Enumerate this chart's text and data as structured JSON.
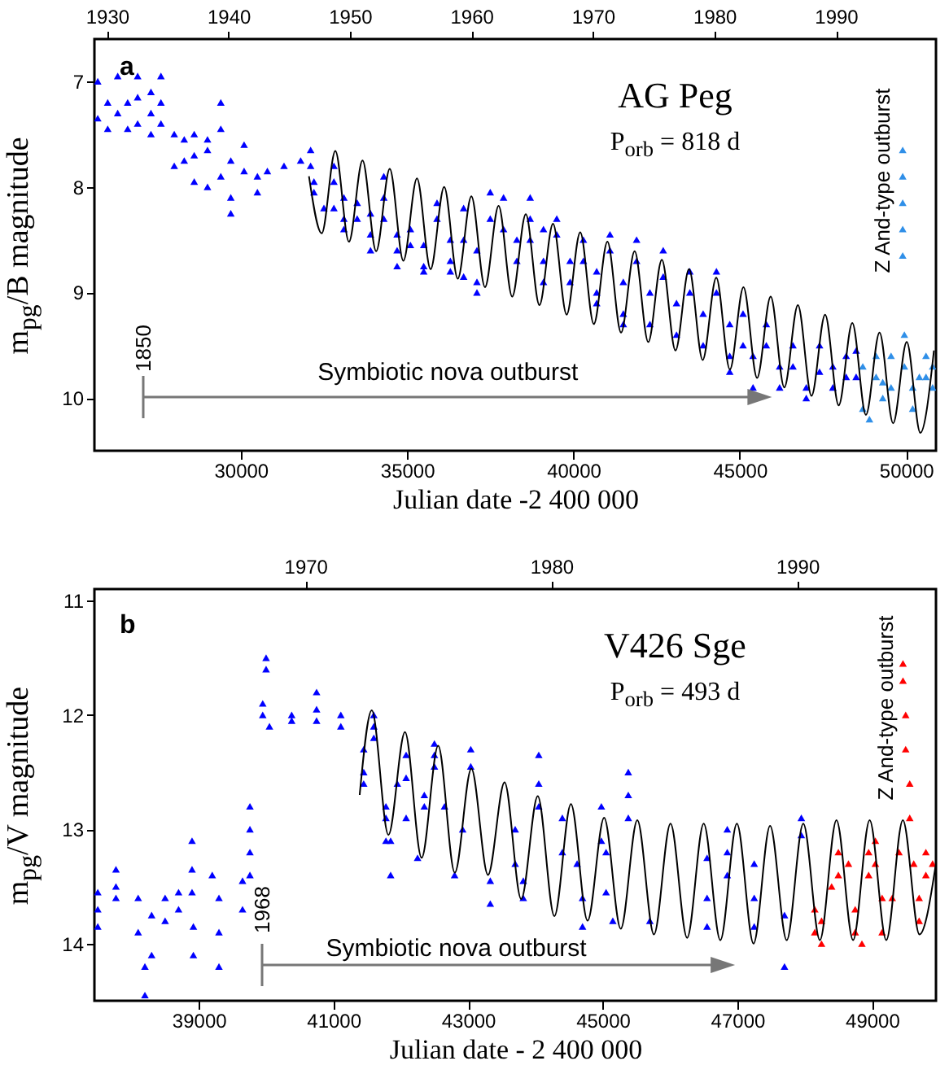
{
  "chart_data": [
    {
      "type": "scatter",
      "title": "AG Peg",
      "subtitle": "P$_{orb}$ = 818 d",
      "xlabel": "Julian date -2 400 000",
      "ylabel": "m$_{pg}$/B magnitude",
      "marker": "triangle",
      "annotations": [
        "a",
        "Z And-type outburst",
        "1850",
        "Symbiotic nova outburst"
      ],
      "xlim": [
        25600,
        50900
      ],
      "xticks": [
        30000,
        35000,
        40000,
        45000,
        50000
      ],
      "ylim": [
        10.5,
        6.6
      ],
      "yticks": [
        7,
        8,
        9,
        10
      ],
      "x2lim": [
        1928.97,
        1998.24
      ],
      "x2ticks": [
        1930,
        1940,
        1950,
        1960,
        1970,
        1980,
        1990
      ],
      "series": [
        {
          "color": "#0000ff",
          "x": [
            25700,
            25700,
            26000,
            26000,
            26300,
            26300,
            26600,
            26600,
            26900,
            26900,
            26900,
            27300,
            27300,
            27300,
            27600,
            27600,
            27600,
            28000,
            28000,
            28300,
            28300,
            28600,
            28600,
            28600,
            29000,
            29000,
            29000,
            29400,
            29400,
            29400,
            29700,
            29700,
            29700,
            30100,
            30100,
            30500,
            30500,
            30800,
            31300,
            31800,
            32200,
            32200,
            32500,
            32100,
            32100,
            32800,
            32800,
            32800,
            33100,
            33100,
            33100,
            33500,
            33500,
            33900,
            33900,
            33900,
            34300,
            34300,
            34300,
            34700,
            34700,
            34700,
            35100,
            35100,
            35500,
            35500,
            35500,
            35900,
            35900,
            36300,
            36300,
            36300,
            36700,
            36700,
            36700,
            37100,
            37100,
            37100,
            37500,
            37500,
            37900,
            37900,
            38300,
            38300,
            38700,
            38700,
            38700,
            39100,
            39100,
            39100,
            39500,
            39500,
            39900,
            39900,
            40300,
            40300,
            40700,
            40700,
            40700,
            41100,
            41100,
            41500,
            41500,
            41500,
            41900,
            41900,
            42300,
            42300,
            42700,
            42700,
            43100,
            43100,
            43500,
            43500,
            43900,
            43900,
            44300,
            44300,
            44700,
            44700,
            44700,
            45100,
            45100,
            45400,
            45400,
            45800,
            45800,
            46200,
            46200,
            46600,
            46600,
            47000,
            47000,
            47400,
            47400,
            47800,
            47800,
            48200,
            48200,
            48500,
            48500
          ],
          "values": [
            7.0,
            7.35,
            7.2,
            7.45,
            6.95,
            7.3,
            7.2,
            7.45,
            6.95,
            7.15,
            7.4,
            7.1,
            7.3,
            7.5,
            6.95,
            7.2,
            7.4,
            7.5,
            7.8,
            7.55,
            7.75,
            7.5,
            7.7,
            7.95,
            7.55,
            7.65,
            8.0,
            7.2,
            7.45,
            7.9,
            7.75,
            8.1,
            8.25,
            7.6,
            7.85,
            7.9,
            8.05,
            7.85,
            7.8,
            7.75,
            7.95,
            8.05,
            8.2,
            7.65,
            7.8,
            7.8,
            7.95,
            8.2,
            8.1,
            8.3,
            8.4,
            8.15,
            8.3,
            8.25,
            8.45,
            8.6,
            7.9,
            8.1,
            8.3,
            8.45,
            8.6,
            8.75,
            8.4,
            8.55,
            8.55,
            8.75,
            8.8,
            8.15,
            8.3,
            8.5,
            8.7,
            8.8,
            8.2,
            8.5,
            8.85,
            8.6,
            8.9,
            9.0,
            8.05,
            8.3,
            8.1,
            8.4,
            8.5,
            8.7,
            8.1,
            8.3,
            8.5,
            8.4,
            8.7,
            8.9,
            8.3,
            8.45,
            8.7,
            8.9,
            8.5,
            8.7,
            8.8,
            9.0,
            9.1,
            8.45,
            8.6,
            8.9,
            9.2,
            9.3,
            8.5,
            8.7,
            9.0,
            9.3,
            8.6,
            8.85,
            9.1,
            9.4,
            8.8,
            9.0,
            9.2,
            9.5,
            8.8,
            9.0,
            9.3,
            9.6,
            9.75,
            9.2,
            9.5,
            9.6,
            9.9,
            9.3,
            9.5,
            9.7,
            9.9,
            9.5,
            9.7,
            9.9,
            10.0,
            9.5,
            9.75,
            9.7,
            9.9,
            9.6,
            9.8,
            9.55,
            9.8
          ]
        },
        {
          "color": "#2f8fe8",
          "x": [
            48700,
            48700,
            48900,
            49100,
            49100,
            49300,
            49300,
            49550,
            49550,
            49900,
            49900,
            49900,
            49900,
            49900,
            49950,
            49950,
            50200,
            50200,
            50400,
            50600,
            50600,
            50800,
            50800
          ],
          "values": [
            9.7,
            10.1,
            10.2,
            9.6,
            9.8,
            9.85,
            10.0,
            9.6,
            9.9,
            7.65,
            7.9,
            8.15,
            8.4,
            8.65,
            9.4,
            9.7,
            9.9,
            10.1,
            9.8,
            9.6,
            9.8,
            9.7,
            9.9
          ]
        },
        {
          "type": "line",
          "marker": "none",
          "color": "#000000",
          "x": [
            32050,
            32434,
            32843,
            33252,
            33661,
            34070,
            34479,
            34888,
            35297,
            35706,
            36115,
            36524,
            36933,
            37342,
            37751,
            38160,
            38569,
            38978,
            39387,
            39796,
            40205,
            40614,
            41023,
            41432,
            41841,
            42250,
            42659,
            43068,
            43477,
            43886,
            44295,
            44704,
            45113,
            45522,
            45931,
            46340,
            46749,
            47158,
            47567,
            47976,
            48385,
            48794,
            49203,
            49612,
            50021,
            50430,
            50839
          ],
          "values": [
            7.9,
            8.44,
            7.66,
            8.52,
            7.75,
            8.61,
            7.83,
            8.7,
            7.92,
            8.78,
            8.0,
            8.87,
            8.09,
            8.95,
            8.18,
            9.04,
            8.26,
            9.12,
            8.35,
            9.21,
            8.43,
            9.3,
            8.52,
            9.38,
            8.61,
            9.47,
            8.69,
            9.55,
            8.78,
            9.64,
            8.86,
            9.73,
            8.95,
            9.81,
            9.04,
            9.9,
            9.12,
            9.98,
            9.21,
            10.07,
            9.29,
            10.16,
            9.38,
            10.24,
            9.47,
            10.33,
            9.55
          ]
        }
      ]
    },
    {
      "type": "scatter",
      "title": "V426 Sge",
      "subtitle": "P$_{orb}$ = 493 d",
      "xlabel": "Julian date - 2 400 000",
      "ylabel": "m$_{pg}$/V magnitude",
      "marker": "triangle",
      "annotations": [
        "b",
        "Z And-type outburst",
        "1968",
        "Symbiotic nova outburst"
      ],
      "xlim": [
        37450,
        49950
      ],
      "xticks": [
        39000,
        41000,
        43000,
        45000,
        47000,
        49000
      ],
      "ylim": [
        14.5,
        10.9
      ],
      "yticks": [
        11,
        12,
        13,
        14
      ],
      "x2lim": [
        1961.42,
        1995.64
      ],
      "x2ticks": [
        1970,
        1980,
        1990
      ],
      "series": [
        {
          "color": "#0000ff",
          "x": [
            37500,
            37500,
            37500,
            37770,
            37770,
            37770,
            38100,
            38100,
            38200,
            38200,
            38300,
            38300,
            38500,
            38500,
            38700,
            38700,
            38900,
            38900,
            38900,
            38920,
            38920,
            39200,
            39300,
            39300,
            39300,
            39650,
            39650,
            39760,
            39760,
            39760,
            39760,
            39950,
            39950,
            40000,
            40000,
            40050,
            40380,
            40380,
            40750,
            40750,
            40750,
            41110,
            41110,
            41450,
            41450,
            41450,
            41600,
            41600,
            41600,
            41780,
            41780,
            41780,
            41850,
            41850,
            41950,
            42080,
            42080,
            42080,
            42250,
            42350,
            42350,
            42500,
            42500,
            42500,
            42650,
            42800,
            42920,
            43040,
            43040,
            43330,
            43330,
            43700,
            43700,
            43820,
            43820,
            44050,
            44050,
            44050,
            44400,
            44400,
            44620,
            44700,
            44700,
            44980,
            44980,
            45050,
            45050,
            45150,
            45380,
            45380,
            45380,
            45700,
            46550,
            46550,
            46550,
            46850,
            46850,
            46850,
            47250,
            47250,
            47250,
            47700,
            47700,
            47950,
            47950
          ],
          "values": [
            13.55,
            13.7,
            13.85,
            13.35,
            13.5,
            13.6,
            13.6,
            13.9,
            14.2,
            14.45,
            13.75,
            14.1,
            13.6,
            13.8,
            13.55,
            13.7,
            13.1,
            13.35,
            13.55,
            13.85,
            14.1,
            13.4,
            13.6,
            13.9,
            14.2,
            13.45,
            13.7,
            12.8,
            13.0,
            13.2,
            13.4,
            11.9,
            12.0,
            11.5,
            11.6,
            12.1,
            12.0,
            12.05,
            11.8,
            11.95,
            12.05,
            12.0,
            12.1,
            12.3,
            12.5,
            12.6,
            12.0,
            12.1,
            12.2,
            12.8,
            12.9,
            13.1,
            13.1,
            13.4,
            12.6,
            12.35,
            12.55,
            12.9,
            13.25,
            12.7,
            12.8,
            12.25,
            12.35,
            12.45,
            12.8,
            13.4,
            13.0,
            12.3,
            12.45,
            13.45,
            13.65,
            13.0,
            13.3,
            13.45,
            13.6,
            12.35,
            12.6,
            12.8,
            12.9,
            13.2,
            13.3,
            13.6,
            13.85,
            12.8,
            13.1,
            13.2,
            13.55,
            13.8,
            12.5,
            12.7,
            12.9,
            13.8,
            13.25,
            13.6,
            13.85,
            13.0,
            13.2,
            13.4,
            13.3,
            13.6,
            13.85,
            13.75,
            14.2,
            12.9,
            13.05
          ]
        },
        {
          "color": "#ff0000",
          "x": [
            48150,
            48150,
            48250,
            48250,
            48400,
            48500,
            48500,
            48650,
            48750,
            48750,
            48850,
            48950,
            48950,
            49050,
            49050,
            49150,
            49150,
            49300,
            49400,
            49460,
            49460,
            49500,
            49500,
            49560,
            49560,
            49620,
            49700,
            49700,
            49800,
            49800,
            49900
          ],
          "values": [
            13.7,
            13.9,
            13.8,
            14.0,
            13.5,
            13.2,
            13.4,
            13.3,
            13.7,
            13.9,
            14.0,
            13.2,
            13.4,
            13.1,
            13.3,
            13.6,
            13.9,
            13.6,
            13.2,
            11.55,
            11.7,
            12.0,
            12.3,
            12.6,
            12.9,
            13.3,
            13.6,
            13.8,
            13.2,
            13.4,
            13.3
          ]
        },
        {
          "type": "line",
          "marker": "none",
          "color": "#000000",
          "x": [
            41390,
            41570,
            41817,
            42063,
            42310,
            42556,
            42803,
            43049,
            43296,
            43542,
            43789,
            44035,
            44282,
            44528,
            44775,
            45021,
            45268,
            45514,
            45761,
            46007,
            46254,
            46500,
            46747,
            46993,
            47240,
            47486,
            47733,
            47979,
            48226,
            48472,
            48719,
            48965,
            49212,
            49458,
            49705,
            49950
          ],
          "values": [
            12.7,
            11.96,
            13.05,
            12.15,
            13.25,
            12.27,
            13.38,
            12.47,
            13.4,
            12.59,
            13.61,
            12.71,
            13.76,
            12.78,
            13.8,
            12.9,
            13.87,
            12.92,
            13.92,
            12.95,
            13.95,
            12.95,
            13.97,
            12.95,
            14.0,
            12.97,
            13.97,
            12.95,
            13.97,
            12.92,
            13.97,
            12.92,
            13.97,
            12.92,
            13.92,
            13.3
          ]
        }
      ]
    }
  ]
}
